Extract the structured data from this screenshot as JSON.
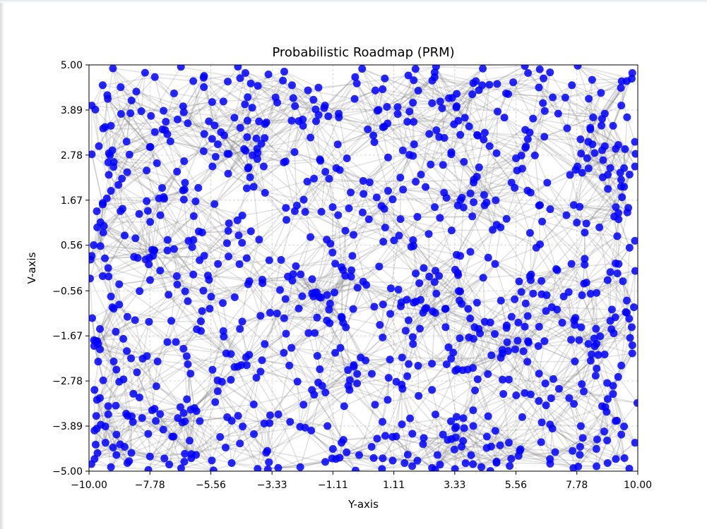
{
  "chart_data": {
    "type": "scatter",
    "title": "Probabilistic Roadmap (PRM)",
    "xlabel": "Y-axis",
    "ylabel": "V-axis",
    "xlim": [
      -10,
      10
    ],
    "ylim": [
      -5,
      5
    ],
    "x_ticks": [
      "−10.00",
      "−7.78",
      "−5.56",
      "−3.33",
      "−1.11",
      "1.11",
      "3.33",
      "5.56",
      "7.78",
      "10.00"
    ],
    "y_ticks": [
      "5.00",
      "3.89",
      "2.78",
      "1.67",
      "0.56",
      "−0.56",
      "−1.67",
      "−2.78",
      "−3.89",
      "−5.00"
    ],
    "x_tick_values": [
      -10,
      -7.78,
      -5.56,
      -3.33,
      -1.11,
      1.11,
      3.33,
      5.56,
      7.78,
      10
    ],
    "y_tick_values": [
      5,
      3.89,
      2.78,
      1.67,
      0.56,
      -0.56,
      -1.67,
      -2.78,
      -3.89,
      -5
    ],
    "grid": true,
    "node_color": "#0000ff",
    "edge_color": "#808080",
    "approximate_node_count": 1000,
    "samples": {
      "x": [
        -9.77,
        -9.64,
        -9.3,
        -9.2,
        -8.85,
        -8.7,
        -9.9,
        -9.5,
        -9.2,
        -8.6,
        -9.7,
        -9.1,
        -8.9,
        -9.6,
        -9.3,
        -9.8,
        -9.4,
        -9.0,
        -8.6,
        -9.5,
        -9.9,
        -9.2,
        -8.8,
        -9.7,
        -9.3,
        -8.9,
        -9.6,
        -9.0,
        -9.8,
        -9.4,
        -8.7,
        -9.2,
        -9.9,
        -9.5,
        -8.9,
        -9.1,
        -9.6,
        -9.3,
        -9.0,
        -9.8,
        9.8,
        9.6,
        9.4,
        9.1,
        8.8,
        9.9,
        9.5,
        9.2,
        8.6,
        9.7,
        9.3,
        8.9,
        9.6,
        9.0,
        9.8,
        9.4,
        9.1,
        8.7,
        9.5,
        9.9,
        9.2,
        8.8,
        9.7,
        9.3,
        9.0,
        9.6,
        9.8,
        9.1,
        9.4,
        8.9,
        -7.6,
        -6.9,
        -6.2,
        -5.1,
        -4.3,
        -3.2,
        -2.6,
        -1.4,
        -0.3,
        0.7,
        1.9,
        2.8,
        4.1,
        5.2,
        6.0,
        6.9,
        7.6,
        -7.2,
        -5.8,
        -4.7,
        -3.6,
        -2.2,
        -0.9,
        0.4,
        1.6,
        2.4,
        3.7,
        4.6,
        5.9,
        7.1,
        -7.9,
        -6.5,
        -5.5,
        -4.0,
        -2.9,
        -1.8,
        -0.6,
        0.9,
        2.1,
        3.2,
        4.4,
        5.6,
        6.7,
        7.8,
        -7.4,
        -6.0,
        -4.9,
        -3.8,
        -2.5,
        -1.2,
        0.2,
        1.3,
        2.6,
        3.9,
        5.0,
        6.3,
        7.4,
        -6.8,
        -5.3,
        -4.2,
        -3.0,
        -1.7,
        -0.4,
        1.0,
        2.2,
        3.5,
        4.8,
        6.1,
        7.3,
        -7.0,
        -5.6,
        -4.5,
        -3.4,
        -2.0,
        -0.8,
        0.6,
        1.8,
        3.0,
        4.2,
        5.4,
        6.6,
        7.7,
        -7.5,
        -6.3,
        -5.0,
        -3.9,
        -2.7,
        -1.5,
        -0.1,
        1.2,
        2.5,
        3.8,
        5.1,
        6.4,
        7.5,
        -7.7,
        -6.6,
        -5.4,
        -4.4,
        -3.1,
        -1.9,
        -0.7,
        0.5,
        1.7,
        2.9,
        4.0,
        5.3,
        6.5,
        7.9,
        -6.1,
        -4.8,
        -3.5,
        -2.3,
        -1.0,
        0.3,
        1.5,
        2.7,
        4.3,
        5.7,
        6.8
      ],
      "y": [
        3.9,
        3.0,
        2.6,
        1.9,
        1.4,
        0.8,
        0.3,
        -0.2,
        -0.7,
        -1.2,
        -1.8,
        -2.3,
        -2.8,
        -3.2,
        -3.6,
        -4.0,
        -4.3,
        -4.6,
        -4.8,
        4.5,
        4.0,
        3.5,
        2.2,
        1.0,
        0.0,
        -0.9,
        -1.5,
        -2.5,
        -3.0,
        -3.9,
        -4.4,
        -4.9,
        2.8,
        1.6,
        -0.4,
        -1.0,
        -2.0,
        -3.4,
        -4.1,
        -4.7,
        4.8,
        4.6,
        4.0,
        3.5,
        3.0,
        2.5,
        2.0,
        1.5,
        1.0,
        0.5,
        0.1,
        -0.3,
        -0.8,
        -1.3,
        -1.9,
        -2.4,
        -2.9,
        -3.4,
        -3.9,
        -4.3,
        -4.7,
        3.8,
        2.3,
        1.2,
        -0.1,
        -1.1,
        -2.1,
        -3.1,
        -4.1,
        -4.8,
        4.7,
        4.3,
        4.6,
        4.1,
        4.8,
        4.2,
        4.5,
        4.0,
        4.7,
        4.4,
        4.9,
        4.1,
        4.6,
        4.3,
        4.8,
        4.2,
        4.5,
        3.6,
        3.3,
        3.7,
        3.2,
        3.5,
        3.8,
        3.1,
        3.6,
        3.3,
        3.7,
        3.0,
        3.4,
        3.8,
        2.4,
        2.1,
        2.5,
        2.0,
        2.6,
        2.2,
        2.7,
        1.9,
        2.3,
        2.8,
        1.8,
        2.4,
        2.1,
        2.5,
        1.3,
        0.9,
        1.1,
        0.7,
        1.4,
        0.6,
        1.2,
        0.8,
        1.5,
        0.4,
        1.0,
        0.5,
        1.3,
        -0.2,
        0.1,
        -0.4,
        0.2,
        -0.6,
        0.3,
        -0.5,
        0.0,
        -0.8,
        0.1,
        -0.3,
        -0.7,
        -1.3,
        -1.0,
        -1.5,
        -1.1,
        -1.6,
        -1.2,
        -1.4,
        -1.7,
        -1.0,
        -1.5,
        -1.2,
        -1.8,
        -1.4,
        -2.3,
        -2.6,
        -2.1,
        -2.7,
        -2.4,
        -2.9,
        -2.2,
        -2.8,
        -3.0,
        -2.5,
        -3.1,
        -2.6,
        -3.2,
        -3.5,
        -3.8,
        -3.3,
        -3.9,
        -3.6,
        -4.0,
        -3.4,
        -4.2,
        -3.7,
        -4.1,
        -3.5,
        -4.3,
        -3.8,
        -4.4,
        -4.6,
        -4.8,
        -4.5,
        -4.9,
        -4.7,
        -4.4,
        -4.8,
        -4.6,
        -4.9,
        -4.5,
        -4.7
      ]
    }
  }
}
